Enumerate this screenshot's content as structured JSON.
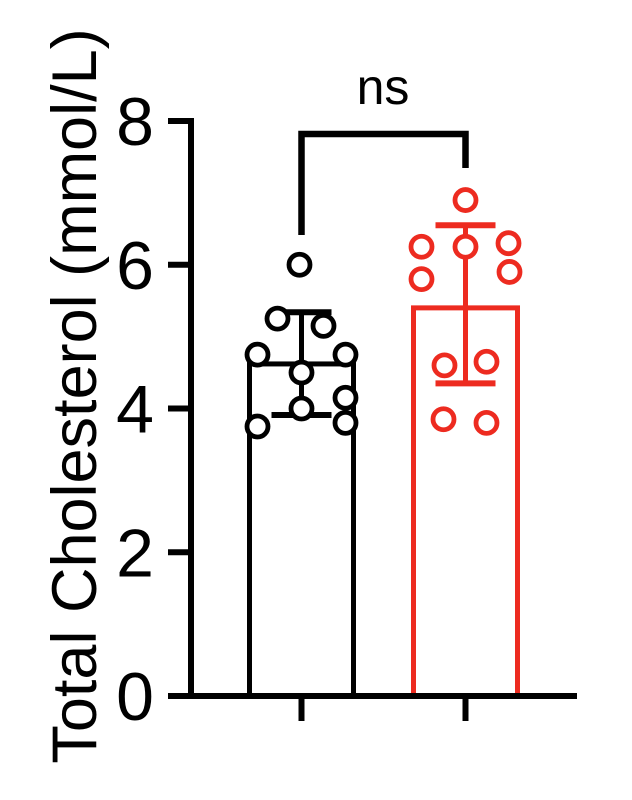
{
  "figure": {
    "background": "#ffffff"
  },
  "chart_data": {
    "type": "bar",
    "title": "",
    "ylabel": "Total Cholesterol (mmol/L)",
    "xlabel": "",
    "ylim": [
      0,
      8
    ],
    "yticks": [
      0,
      2,
      4,
      6,
      8
    ],
    "ytick_labels": [
      "0",
      "2",
      "4",
      "6",
      "8"
    ],
    "grid": false,
    "legend": "none",
    "axis_color": "#000000",
    "significance": {
      "label": "ns",
      "between": [
        "group-1",
        "group-2"
      ]
    },
    "groups": [
      {
        "id": "group-1",
        "color": "#000000",
        "bar_mean": 4.62,
        "error_top": 5.34,
        "error_bottom": 3.91,
        "points": [
          {
            "value": 6.0,
            "dx": -2
          },
          {
            "value": 5.25,
            "dx": -24
          },
          {
            "value": 5.15,
            "dx": 22
          },
          {
            "value": 4.75,
            "dx": -44
          },
          {
            "value": 4.75,
            "dx": 44
          },
          {
            "value": 4.5,
            "dx": 0
          },
          {
            "value": 4.15,
            "dx": 44
          },
          {
            "value": 4.0,
            "dx": 0
          },
          {
            "value": 3.75,
            "dx": -44
          },
          {
            "value": 3.8,
            "dx": 44
          }
        ]
      },
      {
        "id": "group-2",
        "color": "#ED2B20",
        "bar_mean": 5.4,
        "error_top": 6.55,
        "error_bottom": 4.35,
        "points": [
          {
            "value": 6.9,
            "dx": 0
          },
          {
            "value": 6.25,
            "dx": -44
          },
          {
            "value": 6.25,
            "dx": 0
          },
          {
            "value": 6.3,
            "dx": 43
          },
          {
            "value": 5.8,
            "dx": -44
          },
          {
            "value": 5.9,
            "dx": 44
          },
          {
            "value": 4.6,
            "dx": -21
          },
          {
            "value": 4.65,
            "dx": 21
          },
          {
            "value": 3.85,
            "dx": -22
          },
          {
            "value": 3.8,
            "dx": 21
          }
        ]
      }
    ]
  }
}
